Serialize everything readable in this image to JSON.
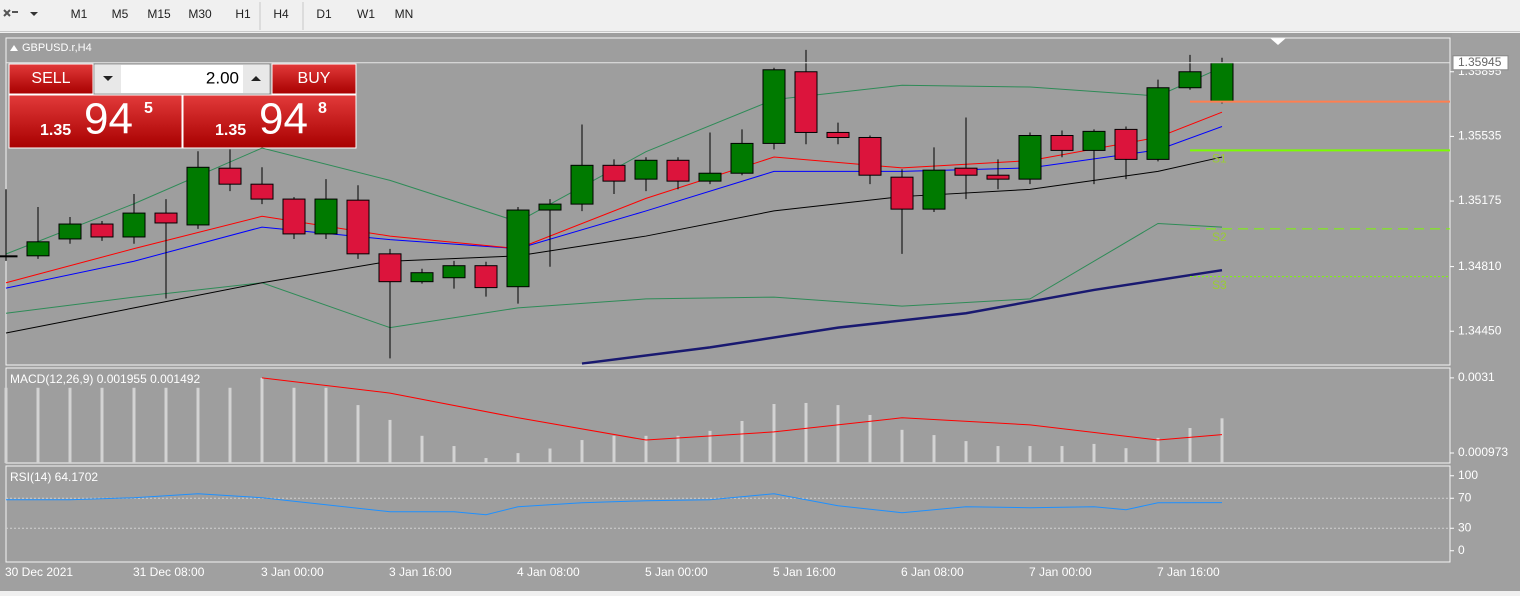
{
  "toolbar": {
    "timeframes": [
      "M1",
      "M5",
      "M15",
      "M30",
      "H1",
      "H4",
      "D1",
      "W1",
      "MN"
    ]
  },
  "trade_panel": {
    "sell_label": "SELL",
    "buy_label": "BUY",
    "lot": "2.00",
    "sell": {
      "prefix": "1.35",
      "big": "94",
      "sup": "5"
    },
    "buy": {
      "prefix": "1.35",
      "big": "94",
      "sup": "8"
    }
  },
  "chart_data": [
    {
      "type": "candlestick",
      "title": "GBPUSD.r,H4",
      "categories": [
        "30 Dec 2021",
        null,
        null,
        null,
        "31 Dec 08:00",
        null,
        null,
        null,
        "3 Jan 00:00",
        null,
        null,
        null,
        "3 Jan 16:00",
        null,
        null,
        null,
        "4 Jan 08:00",
        null,
        null,
        null,
        "5 Jan 00:00",
        null,
        null,
        null,
        "5 Jan 16:00",
        null,
        null,
        null,
        "6 Jan 08:00",
        null,
        null,
        null,
        "7 Jan 00:00",
        null,
        null,
        null,
        "7 Jan 16:00",
        null,
        null
      ],
      "open": [
        1.3487,
        1.3487,
        1.34964,
        1.35047,
        1.34975,
        1.35108,
        1.35042,
        1.35358,
        1.35269,
        1.35186,
        1.34992,
        1.3518,
        1.34881,
        1.34726,
        1.34748,
        1.34815,
        1.34698,
        1.35125,
        1.35158,
        1.35374,
        1.35297,
        1.35402,
        1.35286,
        1.3533,
        1.35496,
        1.35895,
        1.35557,
        1.35529,
        1.35308,
        1.3513,
        1.35358,
        1.35319,
        1.35297,
        1.3554,
        1.35457,
        1.35574,
        1.35407,
        1.35806,
        1.35729
      ],
      "high": [
        1.35241,
        1.35142,
        1.35086,
        1.35064,
        1.35214,
        1.35186,
        1.35452,
        1.35463,
        1.35363,
        1.35197,
        1.35297,
        1.35263,
        1.34909,
        1.34798,
        1.34842,
        1.34837,
        1.35142,
        1.35186,
        1.35601,
        1.35407,
        1.35419,
        1.35419,
        1.35557,
        1.35574,
        1.35917,
        1.36017,
        1.35612,
        1.3554,
        1.35352,
        1.35474,
        1.3564,
        1.35407,
        1.35557,
        1.35568,
        1.35574,
        1.3559,
        1.35851,
        1.35989,
        1.35973
      ],
      "low": [
        1.34842,
        1.34853,
        1.34937,
        1.34953,
        1.34937,
        1.34632,
        1.3502,
        1.3523,
        1.35158,
        1.34964,
        1.34964,
        1.34853,
        1.34299,
        1.34715,
        1.34687,
        1.34643,
        1.34604,
        1.34809,
        1.35119,
        1.35214,
        1.3523,
        1.35241,
        1.35269,
        1.35319,
        1.35463,
        1.35491,
        1.35491,
        1.35269,
        1.34881,
        1.35114,
        1.35186,
        1.35241,
        1.35269,
        1.35419,
        1.35269,
        1.35297,
        1.35396,
        1.35795,
        1.35718
      ],
      "close": [
        1.3487,
        1.34948,
        1.35047,
        1.34975,
        1.35108,
        1.35053,
        1.35363,
        1.35269,
        1.35186,
        1.34992,
        1.35186,
        1.34881,
        1.34726,
        1.34776,
        1.34815,
        1.34693,
        1.35125,
        1.35158,
        1.35374,
        1.35286,
        1.35402,
        1.35286,
        1.3533,
        1.35496,
        1.35906,
        1.35557,
        1.35529,
        1.35319,
        1.3513,
        1.35347,
        1.35319,
        1.35297,
        1.3554,
        1.35457,
        1.35563,
        1.35407,
        1.35806,
        1.35895,
        1.35945
      ],
      "up_color": "#007a00",
      "down_color": "#dc143c",
      "ylim": [
        1.34262,
        1.36083
      ],
      "yticks": [
        1.35895,
        1.35535,
        1.35175,
        {
          "value": 1.3481,
          "label": "1.34810"
        },
        {
          "value": 1.3445,
          "label": "1.34450"
        }
      ],
      "current_price": 1.35945,
      "levels": [
        {
          "value": 1.35729,
          "color": "#ff7f50",
          "style": "solid"
        },
        {
          "value": 1.35457,
          "label": "S1",
          "color": "#7cfc00",
          "style": "solid"
        },
        {
          "value": 1.3502,
          "label": "S2",
          "color": "#7cfc00",
          "style": "dashed"
        },
        {
          "value": 1.34754,
          "label": "S3",
          "color": "#7cfc00",
          "style": "dotted"
        }
      ],
      "overlays": [
        {
          "color": "#2e8b57",
          "x": [
            0,
            4,
            8,
            12,
            16,
            20,
            24,
            28,
            32,
            36,
            38
          ],
          "values": [
            1.3488,
            1.3516,
            1.3547,
            1.3529,
            1.3506,
            1.3545,
            1.3574,
            1.3582,
            1.3581,
            1.3576,
            1.3592
          ]
        },
        {
          "color": "#2e8b57",
          "x": [
            0,
            4,
            8,
            12,
            16,
            20,
            24,
            28,
            32,
            36,
            38
          ],
          "values": [
            1.3455,
            1.3464,
            1.3472,
            1.3447,
            1.3458,
            1.3463,
            1.3464,
            1.3459,
            1.3463,
            1.3505,
            1.3503
          ]
        },
        {
          "color": "#000000",
          "x": [
            0,
            4,
            8,
            12,
            16,
            20,
            24,
            28,
            32,
            36,
            38
          ],
          "values": [
            1.3444,
            1.3458,
            1.3472,
            1.3484,
            1.3487,
            1.3498,
            1.3512,
            1.352,
            1.3524,
            1.3534,
            1.3542
          ]
        },
        {
          "color": "#0000ff",
          "x": [
            0,
            4,
            8,
            12,
            16,
            20,
            24,
            28,
            32,
            36,
            38
          ],
          "values": [
            1.3469,
            1.3484,
            1.3503,
            1.3496,
            1.3491,
            1.3512,
            1.3534,
            1.3534,
            1.3536,
            1.3546,
            1.3559
          ]
        },
        {
          "color": "#ff0000",
          "x": [
            0,
            4,
            8,
            12,
            16,
            20,
            24,
            28,
            32,
            36,
            38
          ],
          "values": [
            1.3472,
            1.3491,
            1.3509,
            1.3498,
            1.3491,
            1.3519,
            1.3542,
            1.3536,
            1.354,
            1.3553,
            1.3567
          ]
        },
        {
          "color": "#191970",
          "x": [
            18,
            22,
            26,
            30,
            34,
            38
          ],
          "values": [
            1.3427,
            1.3436,
            1.3447,
            1.3455,
            1.3468,
            1.3479
          ]
        }
      ]
    },
    {
      "type": "bar",
      "title": "MACD(12,26,9) 0.001955 0.001492",
      "values": [
        0.00282,
        0.00282,
        0.00282,
        0.00282,
        0.00282,
        0.00282,
        0.00282,
        0.00282,
        0.0031,
        0.00282,
        0.00282,
        0.00233,
        0.00191,
        0.00146,
        0.00117,
        0.00083,
        0.00097,
        0.0011,
        0.00134,
        0.00146,
        0.00146,
        0.00146,
        0.0016,
        0.00188,
        0.00236,
        0.00239,
        0.00233,
        0.00205,
        0.00163,
        0.00148,
        0.00131,
        0.00117,
        0.00117,
        0.00117,
        0.00123,
        0.00111,
        0.0014,
        0.00168,
        0.001955
      ],
      "color": "#d3d3d3",
      "signal": {
        "color": "#ff0000",
        "x": [
          8,
          12,
          16,
          20,
          24,
          28,
          32,
          36,
          38
        ],
        "values": [
          0.0031,
          0.00267,
          0.00197,
          0.00134,
          0.00157,
          0.00197,
          0.00177,
          0.00134,
          0.001492
        ]
      },
      "ylim": [
        0.00069,
        0.00338
      ],
      "yticks": [
        0.0031,
        0.000973
      ]
    },
    {
      "type": "line",
      "title": "RSI(14) 64.1702",
      "x": [
        0,
        2,
        4,
        6,
        8,
        10,
        12,
        14,
        15,
        16,
        18,
        20,
        22,
        24,
        26,
        28,
        30,
        32,
        34,
        35,
        36,
        38
      ],
      "values": [
        68,
        68,
        70.7,
        76,
        70.7,
        61.3,
        52,
        52,
        48,
        58.7,
        64,
        66.7,
        68,
        76,
        60,
        50.7,
        58.7,
        57.3,
        58.7,
        54.7,
        64,
        64.1702
      ],
      "color": "#1e90ff",
      "ylim": [
        -15,
        113
      ],
      "yticks": [
        100,
        70,
        30,
        0
      ],
      "levels": [
        70,
        30
      ]
    }
  ]
}
